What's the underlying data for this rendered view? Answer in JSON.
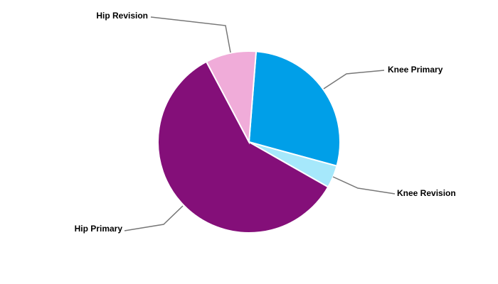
{
  "chart_data": {
    "type": "pie",
    "categories": [
      "Knee Primary",
      "Knee Revision",
      "Hip Primary",
      "Hip Revision"
    ],
    "values": [
      28,
      4,
      59,
      9
    ],
    "colors": [
      "#009fe8",
      "#a6e8fb",
      "#840f79",
      "#f0acd9"
    ]
  }
}
